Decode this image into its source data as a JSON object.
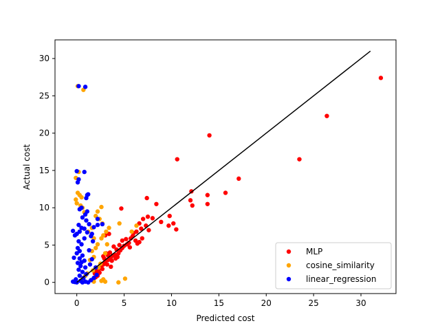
{
  "chart_data": {
    "type": "scatter",
    "xlabel": "Predicted cost",
    "ylabel": "Actual cost",
    "xlim": [
      -2.3,
      33.7
    ],
    "ylim": [
      -1.5,
      32.5
    ],
    "xticks": [
      0,
      5,
      10,
      15,
      20,
      25,
      30
    ],
    "yticks": [
      0,
      5,
      10,
      15,
      20,
      25,
      30
    ],
    "legend_position": "lower-right",
    "reference_line": {
      "x": [
        0,
        31
      ],
      "y": [
        0,
        31
      ],
      "color": "#000000"
    },
    "series": [
      {
        "name": "MLP",
        "color": "#ff0000",
        "points": [
          [
            32.1,
            27.4
          ],
          [
            26.4,
            22.3
          ],
          [
            23.5,
            16.5
          ],
          [
            14.0,
            19.7
          ],
          [
            10.6,
            16.5
          ],
          [
            17.1,
            13.9
          ],
          [
            12.1,
            12.2
          ],
          [
            13.8,
            11.7
          ],
          [
            15.7,
            12.0
          ],
          [
            12.0,
            11.0
          ],
          [
            12.2,
            10.3
          ],
          [
            13.8,
            10.5
          ],
          [
            7.4,
            11.3
          ],
          [
            8.4,
            10.5
          ],
          [
            4.7,
            9.9
          ],
          [
            9.8,
            8.9
          ],
          [
            10.2,
            7.9
          ],
          [
            10.5,
            7.1
          ],
          [
            9.7,
            7.6
          ],
          [
            8.9,
            8.1
          ],
          [
            8.0,
            8.6
          ],
          [
            7.5,
            8.8
          ],
          [
            7.0,
            8.5
          ],
          [
            6.6,
            7.9
          ],
          [
            7.3,
            7.6
          ],
          [
            6.8,
            7.2
          ],
          [
            6.3,
            6.8
          ],
          [
            7.6,
            7.0
          ],
          [
            5.7,
            5.9
          ],
          [
            6.2,
            5.6
          ],
          [
            6.6,
            5.4
          ],
          [
            6.9,
            5.9
          ],
          [
            5.2,
            5.8
          ],
          [
            5.5,
            5.3
          ],
          [
            5.0,
            4.9
          ],
          [
            4.8,
            4.6
          ],
          [
            4.6,
            4.3
          ],
          [
            4.4,
            3.9
          ],
          [
            4.0,
            3.7
          ],
          [
            3.8,
            3.6
          ],
          [
            3.6,
            3.3
          ],
          [
            3.3,
            3.0
          ],
          [
            3.0,
            2.7
          ],
          [
            2.8,
            2.4
          ],
          [
            2.6,
            2.2
          ],
          [
            2.5,
            2.0
          ],
          [
            2.3,
            1.7
          ],
          [
            2.1,
            1.5
          ],
          [
            1.9,
            1.2
          ],
          [
            3.5,
            4.0
          ],
          [
            3.1,
            3.9
          ],
          [
            2.8,
            3.5
          ],
          [
            4.2,
            4.4
          ],
          [
            4.5,
            5.0
          ],
          [
            3.9,
            4.8
          ],
          [
            5.9,
            6.2
          ],
          [
            6.0,
            6.6
          ],
          [
            3.0,
            6.3
          ],
          [
            3.4,
            6.5
          ],
          [
            4.8,
            5.6
          ],
          [
            5.3,
            5.1
          ],
          [
            4.1,
            3.2
          ],
          [
            3.7,
            2.9
          ],
          [
            3.2,
            2.4
          ],
          [
            2.7,
            1.8
          ],
          [
            2.4,
            1.3
          ],
          [
            2.2,
            0.9
          ],
          [
            2.0,
            0.7
          ],
          [
            1.8,
            0.5
          ],
          [
            3.6,
            2.1
          ],
          [
            4.3,
            3.4
          ],
          [
            5.6,
            4.7
          ],
          [
            6.4,
            5.2
          ],
          [
            2.9,
            3.2
          ],
          [
            3.3,
            3.6
          ]
        ]
      },
      {
        "name": "cosine_similarity",
        "color": "#ffa500",
        "points": [
          [
            0.7,
            25.8
          ],
          [
            0.1,
            26.3
          ],
          [
            0.2,
            14.8
          ],
          [
            -0.1,
            14.0
          ],
          [
            0.1,
            12.0
          ],
          [
            0.3,
            11.7
          ],
          [
            0.5,
            11.4
          ],
          [
            -0.1,
            11.1
          ],
          [
            0.0,
            10.6
          ],
          [
            0.4,
            10.3
          ],
          [
            0.6,
            10.0
          ],
          [
            0.8,
            9.4
          ],
          [
            2.6,
            10.1
          ],
          [
            2.2,
            9.5
          ],
          [
            2.0,
            8.9
          ],
          [
            2.4,
            8.5
          ],
          [
            2.7,
            7.9
          ],
          [
            3.4,
            7.3
          ],
          [
            3.1,
            6.8
          ],
          [
            2.8,
            6.3
          ],
          [
            2.6,
            5.9
          ],
          [
            3.2,
            5.1
          ],
          [
            4.5,
            7.9
          ],
          [
            6.3,
            7.6
          ],
          [
            5.8,
            6.8
          ],
          [
            1.6,
            7.3
          ],
          [
            1.2,
            6.8
          ],
          [
            1.8,
            5.9
          ],
          [
            2.2,
            5.1
          ],
          [
            2.0,
            4.6
          ],
          [
            1.6,
            4.2
          ],
          [
            3.0,
            3.9
          ],
          [
            1.8,
            3.4
          ],
          [
            1.4,
            3.0
          ],
          [
            2.5,
            2.5
          ],
          [
            2.3,
            2.0
          ],
          [
            1.7,
            1.6
          ],
          [
            1.1,
            1.2
          ],
          [
            0.9,
            0.9
          ],
          [
            0.6,
            0.5
          ],
          [
            2.8,
            0.4
          ],
          [
            3.0,
            0.1
          ],
          [
            4.4,
            0.0
          ],
          [
            5.1,
            0.5
          ],
          [
            2.6,
            0.2
          ],
          [
            1.8,
            0.1
          ]
        ]
      },
      {
        "name": "linear_regression",
        "color": "#0000ff",
        "points": [
          [
            0.2,
            26.3
          ],
          [
            0.9,
            26.2
          ],
          [
            0.8,
            14.8
          ],
          [
            0.0,
            14.9
          ],
          [
            0.2,
            13.8
          ],
          [
            0.1,
            13.4
          ],
          [
            1.1,
            11.7
          ],
          [
            1.0,
            11.3
          ],
          [
            1.2,
            11.8
          ],
          [
            0.5,
            10.0
          ],
          [
            1.1,
            9.5
          ],
          [
            0.9,
            9.1
          ],
          [
            0.6,
            8.7
          ],
          [
            1.0,
            8.3
          ],
          [
            2.2,
            8.5
          ],
          [
            2.7,
            7.8
          ],
          [
            2.2,
            7.7
          ],
          [
            1.8,
            7.4
          ],
          [
            0.2,
            7.7
          ],
          [
            0.5,
            7.3
          ],
          [
            0.8,
            7.2
          ],
          [
            0.3,
            6.8
          ],
          [
            0.0,
            6.5
          ],
          [
            -0.4,
            6.9
          ],
          [
            -0.2,
            6.3
          ],
          [
            1.1,
            6.7
          ],
          [
            1.5,
            6.2
          ],
          [
            0.8,
            5.9
          ],
          [
            0.2,
            5.5
          ],
          [
            0.5,
            5.1
          ],
          [
            0.1,
            4.6
          ],
          [
            0.3,
            4.2
          ],
          [
            0.0,
            3.9
          ],
          [
            0.6,
            3.6
          ],
          [
            0.3,
            3.2
          ],
          [
            0.8,
            2.9
          ],
          [
            0.1,
            2.6
          ],
          [
            0.4,
            2.2
          ],
          [
            0.9,
            2.0
          ],
          [
            0.2,
            1.7
          ],
          [
            0.6,
            1.4
          ],
          [
            1.0,
            1.1
          ],
          [
            0.3,
            0.9
          ],
          [
            0.7,
            0.6
          ],
          [
            -0.1,
            0.4
          ],
          [
            0.4,
            0.2
          ],
          [
            0.9,
            0.1
          ],
          [
            1.5,
            0.3
          ],
          [
            1.8,
            0.6
          ],
          [
            2.1,
            1.0
          ],
          [
            2.0,
            2.0
          ],
          [
            1.6,
            3.1
          ],
          [
            1.3,
            4.3
          ],
          [
            1.7,
            5.5
          ],
          [
            -0.4,
            0.1
          ],
          [
            -0.2,
            0.05
          ],
          [
            0.0,
            0.0
          ],
          [
            0.6,
            0.0
          ],
          [
            1.2,
            0.0
          ],
          [
            0.5,
            2.7
          ],
          [
            1.4,
            2.4
          ],
          [
            -0.3,
            3.3
          ],
          [
            1.6,
            6.5
          ],
          [
            1.3,
            7.8
          ],
          [
            0.3,
            9.8
          ]
        ]
      }
    ]
  }
}
